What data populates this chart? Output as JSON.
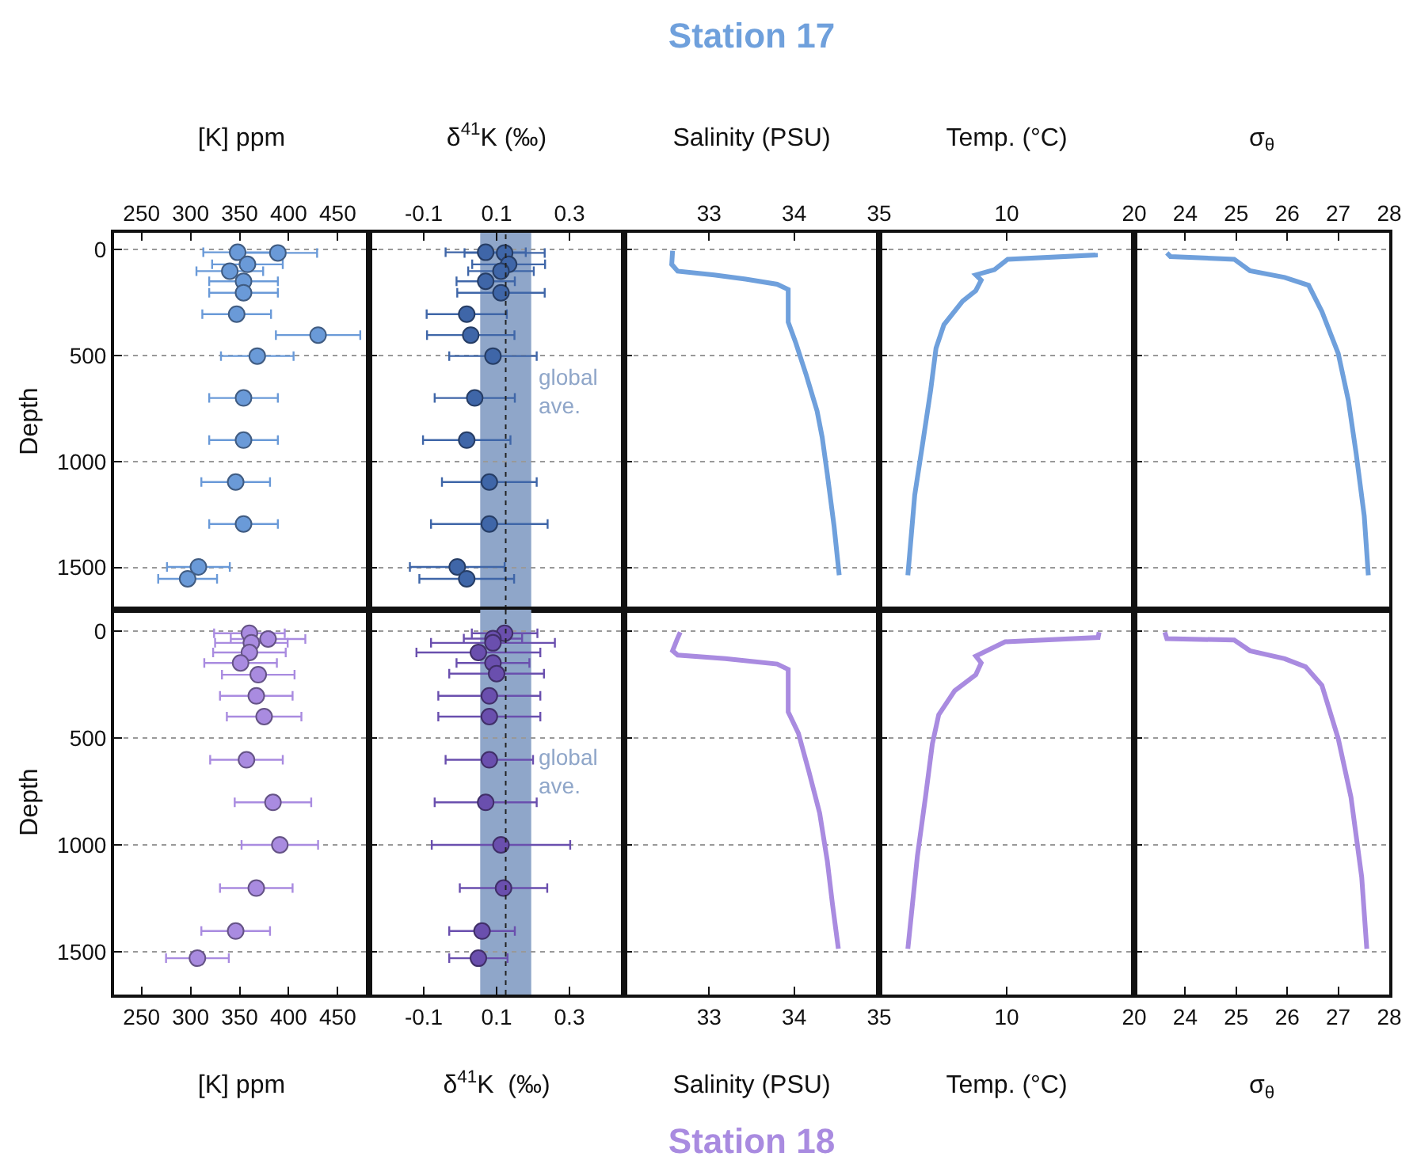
{
  "chart_data": [
    {
      "type": "scatter",
      "xlabel": "[K] ppm",
      "ylabel": "Depth",
      "xlim": [
        222,
        482
      ],
      "xticks": [
        250,
        300,
        350,
        400,
        450
      ],
      "ylim": [
        1700,
        -80
      ],
      "yticks": [
        0,
        500,
        1000,
        1500
      ],
      "grid": "y",
      "marker": "circle",
      "series": [
        {
          "color": "#6a9ad8",
          "x": [
            348,
            389,
            358,
            340,
            354,
            354,
            347,
            430,
            368,
            354,
            354,
            346,
            354,
            308,
            297
          ],
          "values": [
            12,
            15,
            69,
            101,
            149,
            203,
            304,
            403,
            502,
            700,
            899,
            1097,
            1295,
            1498,
            1554
          ],
          "xerrors": [
            35,
            40,
            36,
            34,
            35,
            35,
            35,
            43,
            37,
            35,
            35,
            35,
            35,
            32,
            30
          ]
        }
      ]
    },
    {
      "type": "scatter",
      "xlabel": "δ$^{41}$K (‰)",
      "xlim": [
        -0.25,
        0.45
      ],
      "xticks": [
        -0.1,
        0.1,
        0.3
      ],
      "ylim": [
        1700,
        -80
      ],
      "yticks": [
        0,
        500,
        1000,
        1500
      ],
      "grid": "y",
      "marker": "circle",
      "tick_labels": "x",
      "bands": [
        {
          "axis": "x",
          "from": 0.055,
          "to": 0.195,
          "label": "global ave.",
          "color": "#8fa6c9"
        }
      ],
      "ref_lines": [
        {
          "axis": "x",
          "value": 0.125,
          "color": "#222222",
          "line_style": "dotted"
        }
      ],
      "series": [
        {
          "color": "#3f66a8",
          "x": [
            0.07,
            0.122,
            0.133,
            0.112,
            0.07,
            0.112,
            0.018,
            0.029,
            0.09,
            0.04,
            0.018,
            0.08,
            0.08,
            -0.008,
            0.018
          ],
          "values": [
            12,
            15,
            69,
            101,
            149,
            203,
            304,
            403,
            502,
            700,
            899,
            1097,
            1295,
            1498,
            1554
          ],
          "xerrors": [
            0.11,
            0.11,
            0.1,
            0.09,
            0.08,
            0.12,
            0.11,
            0.12,
            0.12,
            0.11,
            0.12,
            0.13,
            0.16,
            0.13,
            0.13
          ]
        }
      ]
    },
    {
      "type": "line",
      "title": "Station 17",
      "xlabel": "Salinity (PSU)",
      "xlim": [
        32,
        35
      ],
      "xticks": [
        33,
        34,
        35
      ],
      "ylim": [
        1700,
        -80
      ],
      "yticks": [
        0,
        500,
        1000,
        1500
      ],
      "grid": "y",
      "tick_labels": "x",
      "line_style": "solid",
      "series": [
        {
          "color": "#6fa0dc",
          "x": [
            32.57,
            32.56,
            32.63,
            33.06,
            33.43,
            33.8,
            33.93,
            33.93,
            34.02,
            34.14,
            34.27,
            34.33,
            34.39,
            34.47,
            34.53
          ],
          "values": [
            5,
            69,
            101,
            119,
            139,
            163,
            188,
            342,
            441,
            589,
            762,
            886,
            1059,
            1307,
            1537
          ]
        }
      ]
    },
    {
      "type": "line",
      "xlabel": "Temp. (°C)",
      "xlim": [
        0,
        20
      ],
      "xticks": [
        10,
        20
      ],
      "ylim": [
        1700,
        -80
      ],
      "yticks": [
        0,
        500,
        1000,
        1500
      ],
      "grid": "y",
      "tick_labels": "x",
      "line_style": "solid",
      "series": [
        {
          "color": "#6fa0dc",
          "x": [
            16.96,
            16.96,
            10.08,
            9.04,
            7.58,
            8.0,
            7.58,
            6.54,
            5.08,
            4.46,
            4.04,
            3.42,
            2.79,
            2.25
          ],
          "values": [
            15,
            25,
            45,
            94,
            119,
            144,
            193,
            243,
            354,
            465,
            663,
            911,
            1158,
            1537
          ]
        }
      ]
    },
    {
      "type": "line",
      "xlabel": "σ$_{θ}$",
      "xlim": [
        23,
        28
      ],
      "xticks": [
        24,
        25,
        26,
        27,
        28
      ],
      "ylim": [
        1700,
        -80
      ],
      "yticks": [
        0,
        500,
        1000,
        1500
      ],
      "grid": "y",
      "tick_labels": "x",
      "line_style": "solid",
      "series": [
        {
          "color": "#6fa0dc",
          "x": [
            23.64,
            23.71,
            24.96,
            25.27,
            25.95,
            26.42,
            26.68,
            27.0,
            27.2,
            27.35,
            27.51,
            27.59
          ],
          "values": [
            15,
            32,
            45,
            99,
            131,
            168,
            292,
            490,
            713,
            960,
            1257,
            1537
          ]
        }
      ]
    },
    {
      "type": "scatter",
      "xlabel": "[K] ppm",
      "ylabel": "Depth",
      "xlim": [
        222,
        482
      ],
      "xticks": [
        250,
        300,
        350,
        400,
        450
      ],
      "ylim": [
        1700,
        -100
      ],
      "yticks": [
        0,
        500,
        1000,
        1500
      ],
      "grid": "y",
      "marker": "circle",
      "series": [
        {
          "color": "#a98be0",
          "x": [
            360,
            379,
            362,
            360,
            351,
            369,
            367,
            375,
            357,
            384,
            391,
            367,
            346,
            307
          ],
          "values": [
            10,
            37,
            55,
            100,
            149,
            204,
            303,
            400,
            602,
            801,
            1000,
            1202,
            1403,
            1530
          ],
          "xerrors": [
            36,
            38,
            37,
            37,
            37,
            37,
            37,
            38,
            37,
            39,
            39,
            37,
            35,
            32
          ]
        }
      ]
    },
    {
      "type": "scatter",
      "xlabel": "δ$^{41}$K  (‰)",
      "xlim": [
        -0.25,
        0.45
      ],
      "xticks": [
        -0.1,
        0.1,
        0.3
      ],
      "ylim": [
        1700,
        -100
      ],
      "yticks": [
        0,
        500,
        1000,
        1500
      ],
      "grid": "y",
      "marker": "circle",
      "tick_labels": "x",
      "bands": [
        {
          "axis": "x",
          "from": 0.055,
          "to": 0.195,
          "label": "global ave.",
          "color": "#8fa6c9"
        }
      ],
      "ref_lines": [
        {
          "axis": "x",
          "value": 0.125,
          "color": "#222222",
          "line_style": "dotted"
        }
      ],
      "series": [
        {
          "color": "#6a4fae",
          "x": [
            0.122,
            0.09,
            0.09,
            0.05,
            0.09,
            0.1,
            0.08,
            0.08,
            0.08,
            0.07,
            0.112,
            0.119,
            0.06,
            0.05
          ],
          "values": [
            10,
            35,
            55,
            100,
            149,
            199,
            303,
            400,
            602,
            801,
            1000,
            1202,
            1403,
            1530
          ],
          "xerrors": [
            0.09,
            0.08,
            0.17,
            0.17,
            0.1,
            0.13,
            0.14,
            0.14,
            0.12,
            0.14,
            0.19,
            0.12,
            0.09,
            0.08
          ]
        }
      ]
    },
    {
      "type": "line",
      "title": "Station 18",
      "xlabel": "Salinity (PSU)",
      "xlim": [
        32,
        35
      ],
      "xticks": [
        33,
        34,
        35
      ],
      "ylim": [
        1700,
        -100
      ],
      "yticks": [
        0,
        500,
        1000,
        1500
      ],
      "grid": "y",
      "tick_labels": "x",
      "line_style": "solid",
      "series": [
        {
          "color": "#a98be0",
          "x": [
            32.66,
            32.62,
            32.57,
            32.63,
            33.19,
            33.8,
            33.93,
            33.93,
            34.05,
            34.17,
            34.3,
            34.39,
            34.45,
            34.52
          ],
          "values": [
            5,
            42,
            92,
            112,
            129,
            154,
            179,
            378,
            478,
            652,
            851,
            1075,
            1275,
            1486
          ]
        }
      ]
    },
    {
      "type": "line",
      "xlabel": "Temp. (°C)",
      "xlim": [
        0,
        20
      ],
      "xticks": [
        10,
        20
      ],
      "ylim": [
        1700,
        -100
      ],
      "yticks": [
        0,
        500,
        1000,
        1500
      ],
      "grid": "y",
      "tick_labels": "x",
      "line_style": "solid",
      "series": [
        {
          "color": "#a98be0",
          "x": [
            17.25,
            17.17,
            9.88,
            7.58,
            8.0,
            7.58,
            5.92,
            4.67,
            4.17,
            3.63,
            3.0,
            2.25
          ],
          "values": [
            5,
            30,
            50,
            117,
            149,
            204,
            279,
            391,
            528,
            777,
            1051,
            1486
          ]
        }
      ]
    },
    {
      "type": "line",
      "xlabel": "σ$_{θ}$",
      "xlim": [
        23,
        28
      ],
      "xticks": [
        24,
        25,
        26,
        27,
        28
      ],
      "ylim": [
        1700,
        -100
      ],
      "yticks": [
        0,
        500,
        1000,
        1500
      ],
      "grid": "y",
      "tick_labels": "x",
      "line_style": "solid",
      "series": [
        {
          "color": "#a98be0",
          "x": [
            23.6,
            23.64,
            24.96,
            25.27,
            25.95,
            26.36,
            26.68,
            27.0,
            27.25,
            27.46,
            27.56
          ],
          "values": [
            5,
            35,
            42,
            92,
            129,
            167,
            254,
            503,
            777,
            1150,
            1486
          ]
        }
      ]
    }
  ]
}
